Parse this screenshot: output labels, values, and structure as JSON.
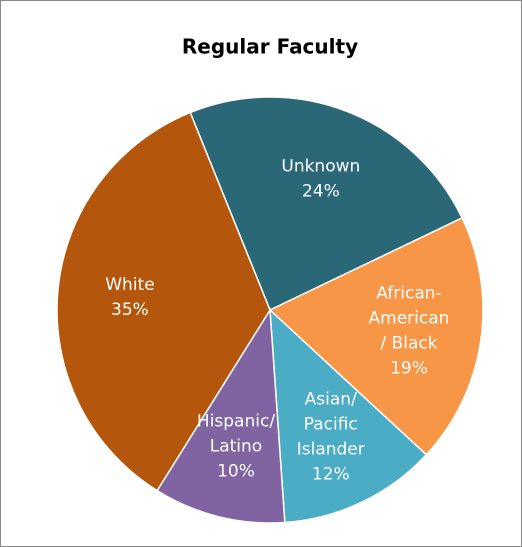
{
  "chart_data": {
    "type": "pie",
    "title": "Regular Faculty",
    "categories": [
      [
        "Unknown"
      ],
      [
        "African-",
        "American",
        "/ Black"
      ],
      [
        "Asian/",
        "Pacific",
        "Islander"
      ],
      [
        "Hispanic/",
        "Latino"
      ],
      [
        "White"
      ]
    ],
    "values": [
      24,
      19,
      12,
      10,
      35
    ],
    "value_labels": [
      "24%",
      "19%",
      "12%",
      "10%",
      "35%"
    ],
    "colors": [
      "#2a6878",
      "#f79646",
      "#4bacc6",
      "#8064a2",
      "#b4560b"
    ]
  }
}
